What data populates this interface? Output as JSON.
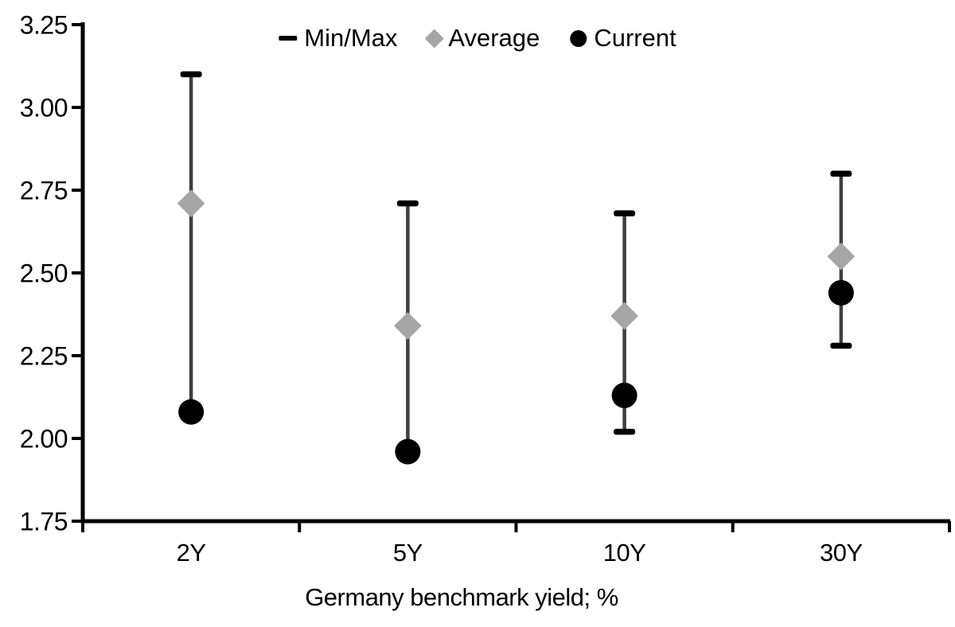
{
  "chart_data": {
    "type": "scatter",
    "subtype": "min-max-range-markers",
    "title": "",
    "xlabel": "Germany benchmark yield; %",
    "ylabel": "",
    "categories": [
      "2Y",
      "5Y",
      "10Y",
      "30Y"
    ],
    "series": [
      {
        "name": "Min/Max",
        "marker": "dash",
        "min": [
          2.08,
          1.96,
          2.02,
          2.28
        ],
        "max": [
          3.1,
          2.71,
          2.68,
          2.8
        ]
      },
      {
        "name": "Average",
        "marker": "diamond",
        "values": [
          2.71,
          2.34,
          2.37,
          2.55
        ]
      },
      {
        "name": "Current",
        "marker": "circle",
        "values": [
          2.08,
          1.96,
          2.13,
          2.44
        ]
      }
    ],
    "ylim": [
      1.75,
      3.25
    ],
    "yticks": [
      3.25,
      3.0,
      2.75,
      2.5,
      2.25,
      2.0,
      1.75
    ],
    "ytick_decimals": 2,
    "grid": false,
    "legend_position": "top-center",
    "colors": {
      "axis": "#000000",
      "text": "#000000",
      "whisker": "#3F3F3F",
      "minmax_cap": "#000000",
      "average": "#A6A6A6",
      "current": "#000000",
      "background": "#FFFFFF"
    }
  }
}
